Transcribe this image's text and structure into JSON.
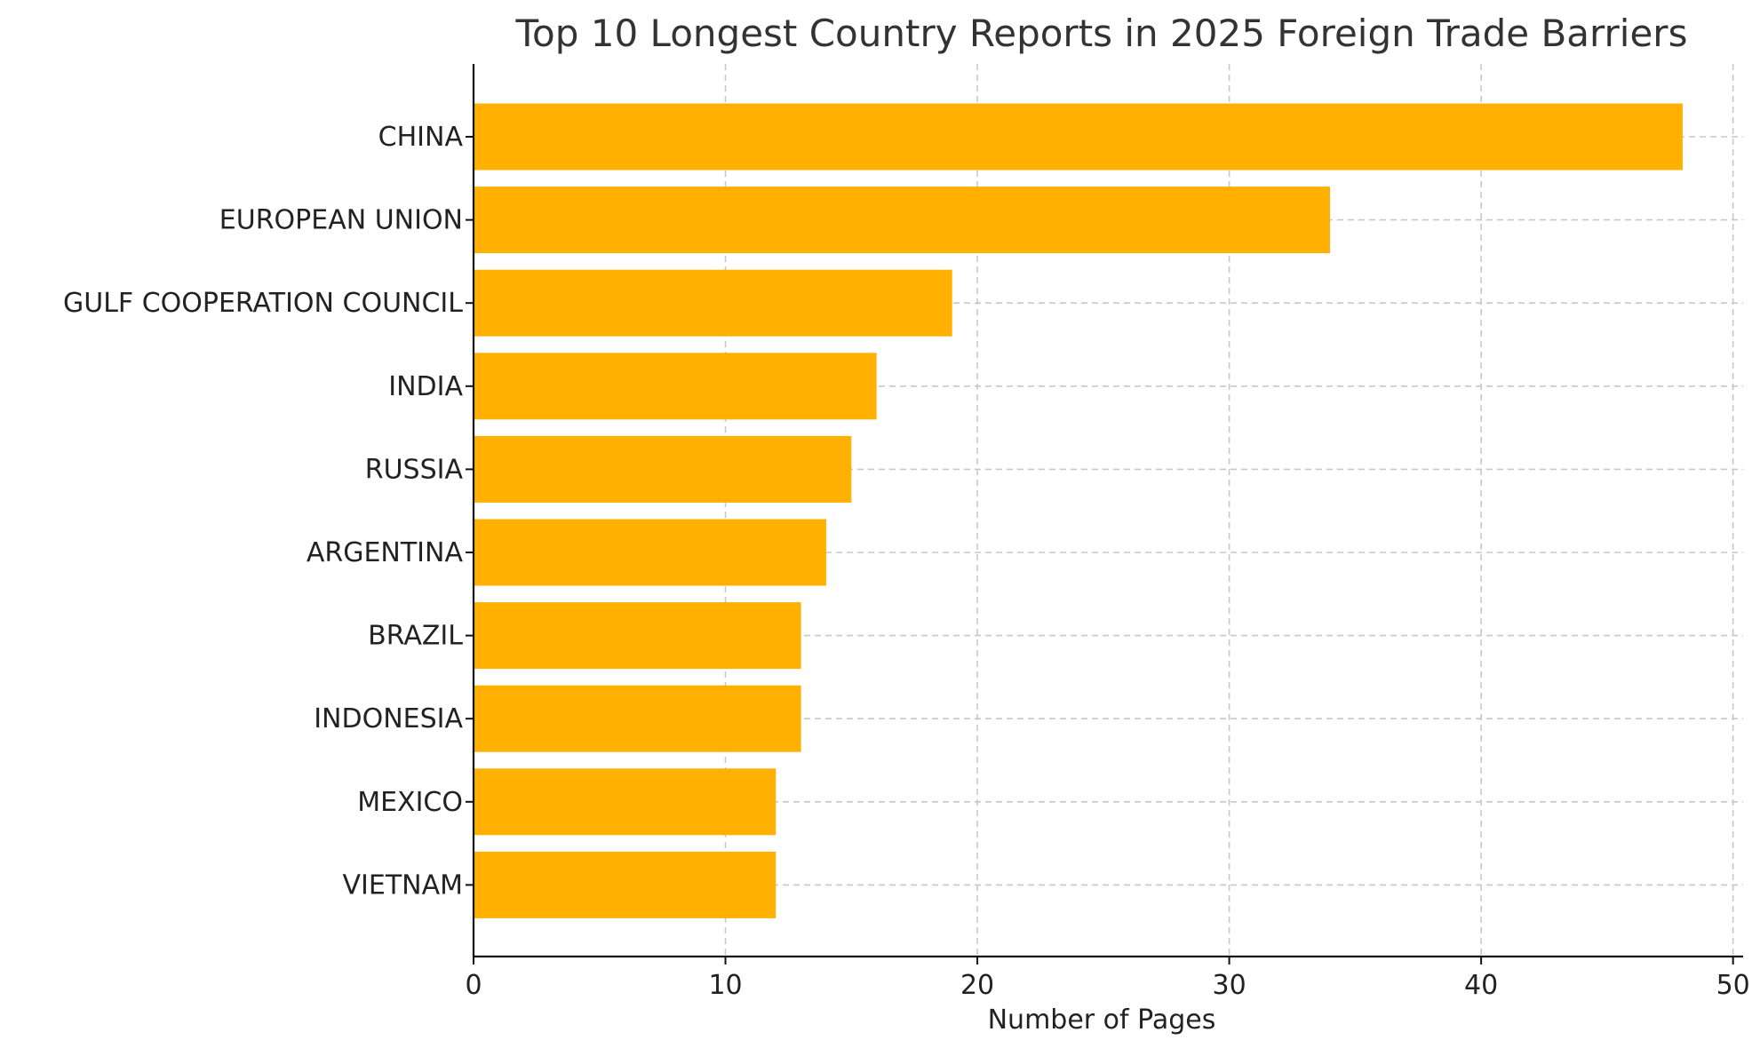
{
  "chart_data": {
    "type": "bar",
    "orientation": "horizontal",
    "title": "Top 10 Longest Country Reports in 2025 Foreign Trade Barriers",
    "xlabel": "Number of Pages",
    "ylabel": "",
    "categories": [
      "CHINA",
      "EUROPEAN UNION",
      "GULF COOPERATION COUNCIL",
      "INDIA",
      "RUSSIA",
      "ARGENTINA",
      "BRAZIL",
      "INDONESIA",
      "MEXICO",
      "VIETNAM"
    ],
    "values": [
      48,
      34,
      19,
      16,
      15,
      14,
      13,
      13,
      12,
      12
    ],
    "xlim": [
      0,
      50.4
    ],
    "xticks": [
      0,
      10,
      20,
      30,
      40,
      50
    ],
    "grid": true,
    "bar_color": "#FFB000"
  }
}
